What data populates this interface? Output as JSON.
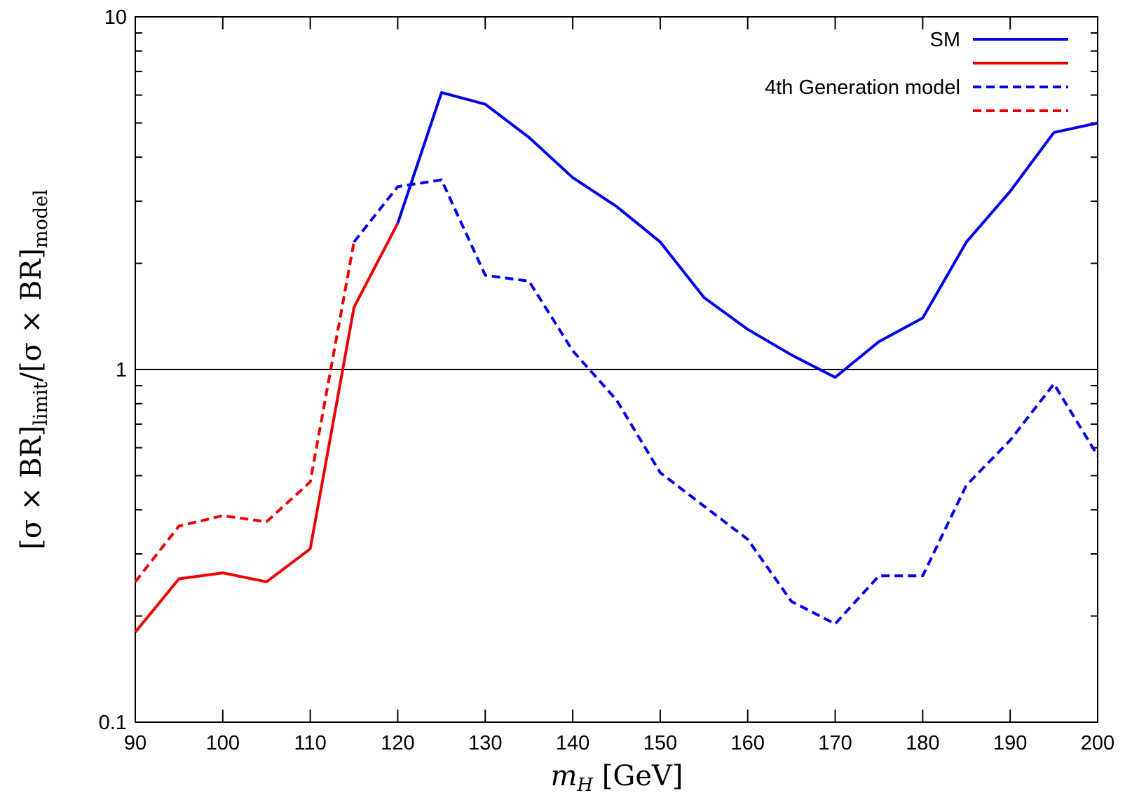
{
  "chart_data": {
    "type": "line",
    "title": "",
    "xlabel": "m_H [GeV]",
    "xlabel_parts": {
      "main": "m",
      "sub": "H",
      "rest": " [GeV]"
    },
    "ylabel": "[σ × BR]_limit/[σ × BR]_model",
    "ylabel_parts": {
      "part1": "[σ × BR]",
      "sub1": "limit",
      "part2": "/[σ × BR]",
      "sub2": "model"
    },
    "xlim": [
      90,
      200
    ],
    "ylim": [
      0.1,
      10
    ],
    "y_scale": "log",
    "x_ticks": [
      90,
      100,
      110,
      120,
      130,
      140,
      150,
      160,
      170,
      180,
      190,
      200
    ],
    "x_tick_labels": [
      "90",
      "100",
      "110",
      "120",
      "130",
      "140",
      "150",
      "160",
      "170",
      "180",
      "190",
      "200"
    ],
    "y_ticks": [
      0.1,
      1,
      10
    ],
    "y_tick_labels": [
      "0.1",
      "1",
      "10"
    ],
    "reference_line": {
      "y": 1,
      "color": "#000000"
    },
    "grid": false,
    "legend_position": "top-right",
    "series": [
      {
        "name": "SM",
        "style": "solid",
        "color": "#0000ee",
        "x": [
          120,
          125,
          130,
          135,
          140,
          145,
          150,
          155,
          160,
          165,
          170,
          175,
          180,
          185,
          190,
          195,
          200
        ],
        "y": [
          2.6,
          6.1,
          5.65,
          4.55,
          3.5,
          2.9,
          2.3,
          1.6,
          1.3,
          1.1,
          0.95,
          1.2,
          1.4,
          2.3,
          3.2,
          4.7,
          5.0
        ]
      },
      {
        "name": "",
        "style": "solid",
        "color": "#ee0000",
        "x": [
          90,
          95,
          100,
          105,
          110,
          115,
          120
        ],
        "y": [
          0.18,
          0.255,
          0.265,
          0.25,
          0.31,
          1.5,
          2.6
        ]
      },
      {
        "name": "4th Generation model",
        "style": "dashed",
        "color": "#0000ee",
        "x": [
          115,
          120,
          125,
          130,
          135,
          140,
          145,
          150,
          155,
          160,
          165,
          170,
          175,
          180,
          185,
          190,
          195,
          200
        ],
        "y": [
          2.3,
          3.3,
          3.45,
          1.85,
          1.78,
          1.13,
          0.82,
          0.51,
          0.41,
          0.33,
          0.22,
          0.19,
          0.26,
          0.26,
          0.47,
          0.63,
          0.91,
          0.57
        ]
      },
      {
        "name": "",
        "style": "dashed",
        "color": "#ee0000",
        "x": [
          90,
          95,
          100,
          105,
          110,
          115
        ],
        "y": [
          0.25,
          0.36,
          0.385,
          0.37,
          0.48,
          2.3
        ]
      }
    ]
  }
}
